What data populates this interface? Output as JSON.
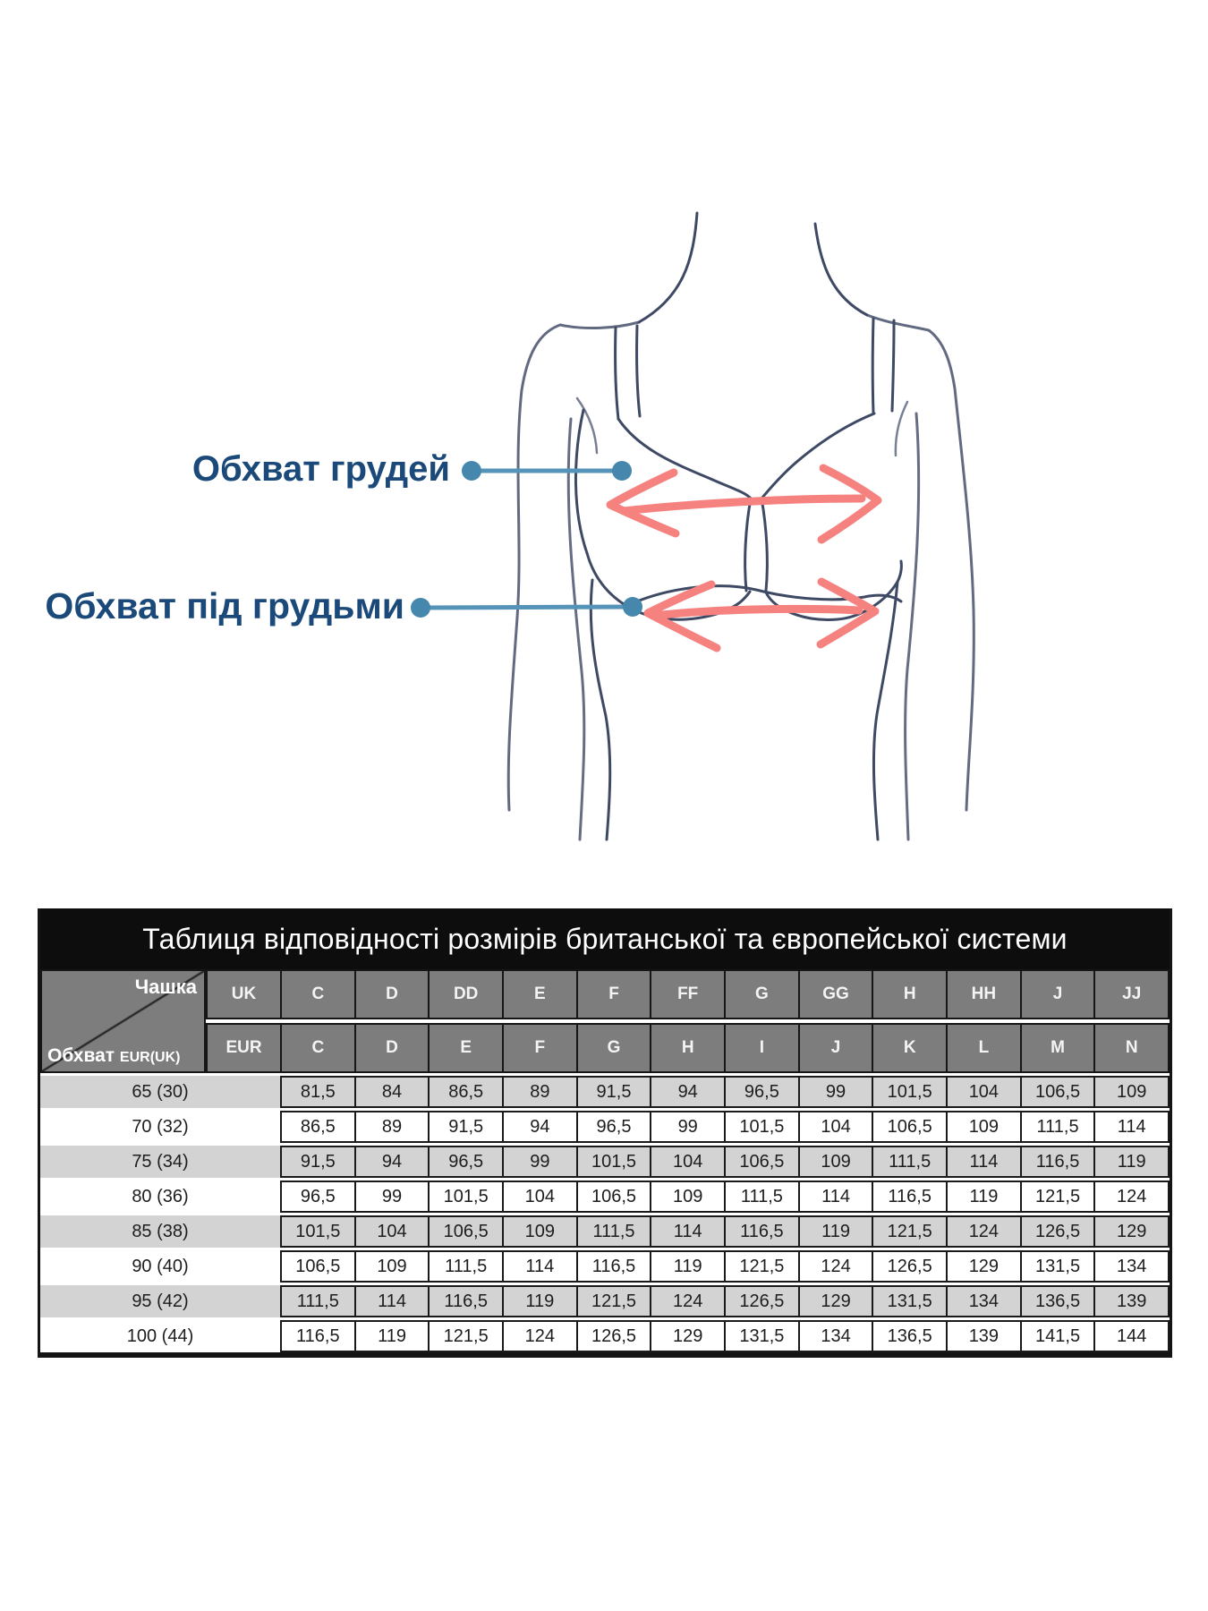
{
  "figure": {
    "labels": {
      "bust": "Обхват грудей",
      "underbust": "Обхват під грудьми"
    },
    "colors": {
      "label_text": "#1b4a7a",
      "connector_blue": "#4d8fb4",
      "arrow_red": "#f5827f",
      "body_line": "#3e4964"
    }
  },
  "table": {
    "title": "Таблиця відповідності розмірів британської та європейської системи",
    "corner": {
      "cup_label": "Чашка",
      "girth_label": "Обхват",
      "girth_sub": "EUR(UK)"
    },
    "uk_row": {
      "system": "UK",
      "cups": [
        "C",
        "D",
        "DD",
        "E",
        "F",
        "FF",
        "G",
        "GG",
        "H",
        "HH",
        "J",
        "JJ"
      ]
    },
    "eur_row": {
      "system": "EUR",
      "cups": [
        "C",
        "D",
        "E",
        "F",
        "G",
        "H",
        "I",
        "J",
        "K",
        "L",
        "M",
        "N"
      ]
    },
    "rows": [
      {
        "label": "65 (30)",
        "values": [
          "81,5",
          "84",
          "86,5",
          "89",
          "91,5",
          "94",
          "96,5",
          "99",
          "101,5",
          "104",
          "106,5",
          "109"
        ]
      },
      {
        "label": "70 (32)",
        "values": [
          "86,5",
          "89",
          "91,5",
          "94",
          "96,5",
          "99",
          "101,5",
          "104",
          "106,5",
          "109",
          "111,5",
          "114"
        ]
      },
      {
        "label": "75 (34)",
        "values": [
          "91,5",
          "94",
          "96,5",
          "99",
          "101,5",
          "104",
          "106,5",
          "109",
          "111,5",
          "114",
          "116,5",
          "119"
        ]
      },
      {
        "label": "80 (36)",
        "values": [
          "96,5",
          "99",
          "101,5",
          "104",
          "106,5",
          "109",
          "111,5",
          "114",
          "116,5",
          "119",
          "121,5",
          "124"
        ]
      },
      {
        "label": "85 (38)",
        "values": [
          "101,5",
          "104",
          "106,5",
          "109",
          "111,5",
          "114",
          "116,5",
          "119",
          "121,5",
          "124",
          "126,5",
          "129"
        ]
      },
      {
        "label": "90 (40)",
        "values": [
          "106,5",
          "109",
          "111,5",
          "114",
          "116,5",
          "119",
          "121,5",
          "124",
          "126,5",
          "129",
          "131,5",
          "134"
        ]
      },
      {
        "label": "95 (42)",
        "values": [
          "111,5",
          "114",
          "116,5",
          "119",
          "121,5",
          "124",
          "126,5",
          "129",
          "131,5",
          "134",
          "136,5",
          "139"
        ]
      },
      {
        "label": "100 (44)",
        "values": [
          "116,5",
          "119",
          "121,5",
          "124",
          "126,5",
          "129",
          "131,5",
          "134",
          "136,5",
          "139",
          "141,5",
          "144"
        ]
      }
    ],
    "colors": {
      "title_bg": "#0d0d0d",
      "header_bg": "#7d7d7d",
      "row_gray": "#d3d3d3",
      "border": "#1a1a1a"
    }
  }
}
